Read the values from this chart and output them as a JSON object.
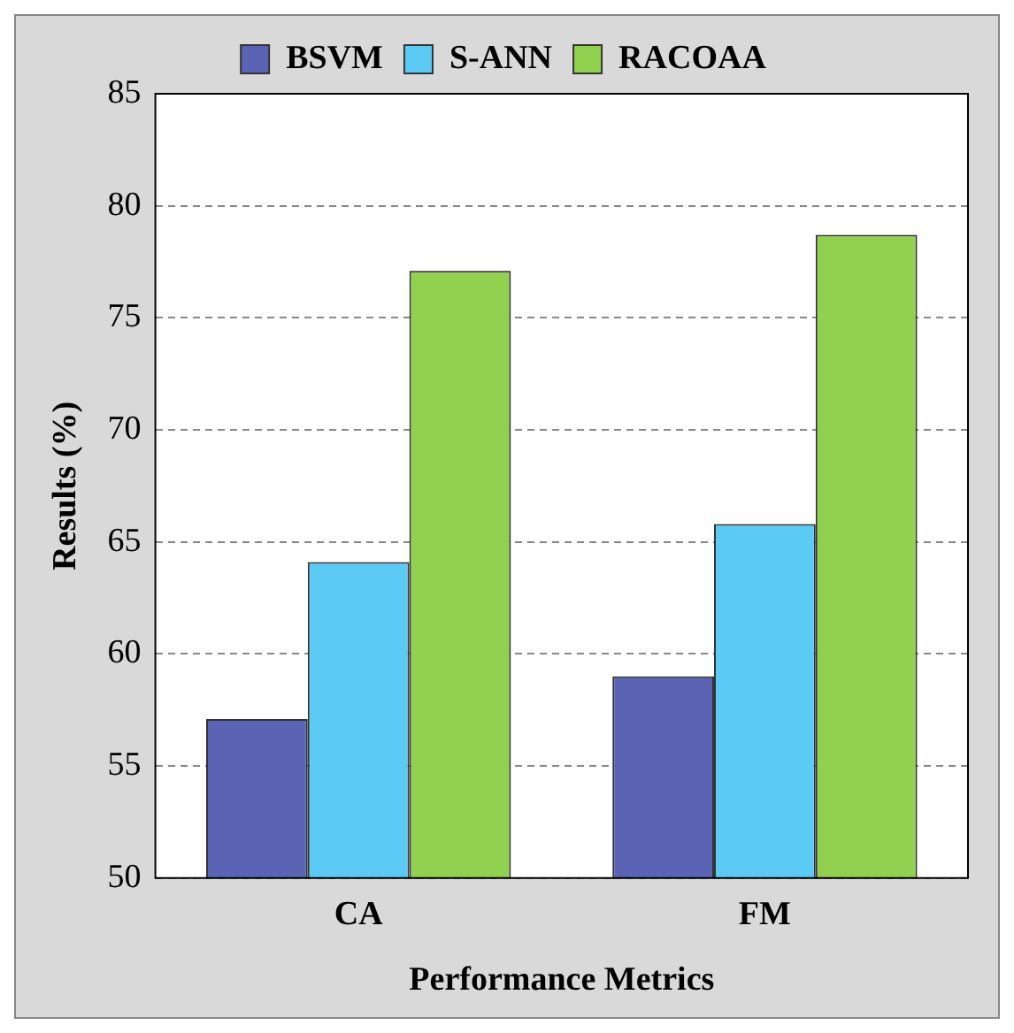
{
  "chart_data": {
    "type": "bar",
    "xlabel": "Performance Metrics",
    "ylabel": "Results (%)",
    "categories": [
      "CA",
      "FM"
    ],
    "series": [
      {
        "name": "BSVM",
        "color": "#5b64b4",
        "values": [
          57.1,
          59.0
        ]
      },
      {
        "name": "S-ANN",
        "color": "#5bcbf5",
        "values": [
          64.1,
          65.8
        ]
      },
      {
        "name": "RACOAA",
        "color": "#92d050",
        "values": [
          77.1,
          78.7
        ]
      }
    ],
    "ylim": [
      50,
      85
    ],
    "yticks": [
      50,
      55,
      60,
      65,
      70,
      75,
      80,
      85
    ],
    "grid": "y",
    "legend": "top"
  }
}
